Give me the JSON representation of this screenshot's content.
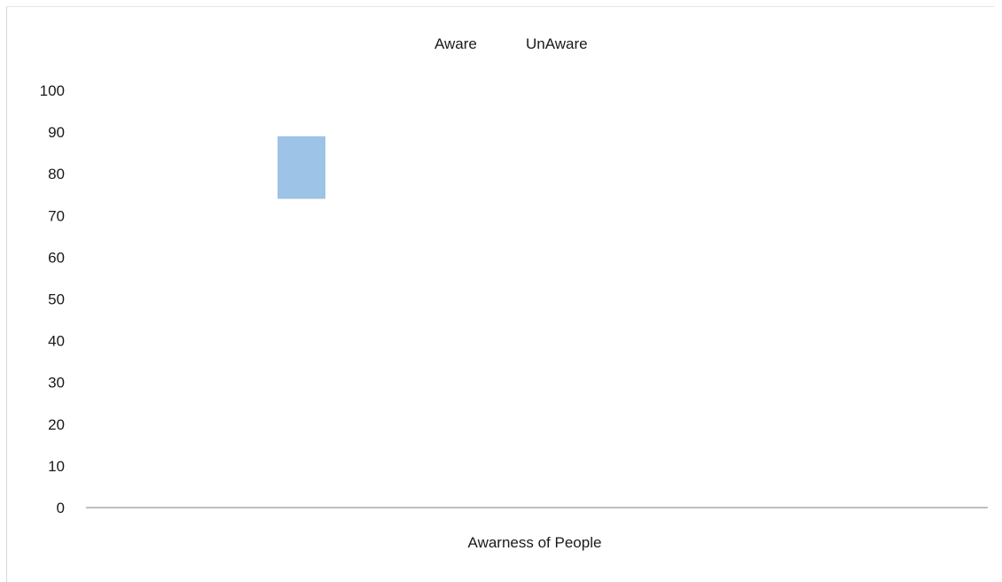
{
  "chart_data": {
    "type": "bar",
    "categories": [
      "Awarness of People"
    ],
    "series": [
      {
        "name": "Aware",
        "low": 74,
        "high": 89,
        "color": "#9dc3e6"
      },
      {
        "name": "UnAware",
        "color": "#ffffff"
      }
    ],
    "xlabel": "Awarness of People",
    "ylim": [
      0,
      100
    ],
    "yticks": [
      0,
      10,
      20,
      30,
      40,
      50,
      60,
      70,
      80,
      90,
      100
    ],
    "legend_position": "top",
    "grid": false,
    "axis_color": "#bfbfbf"
  }
}
